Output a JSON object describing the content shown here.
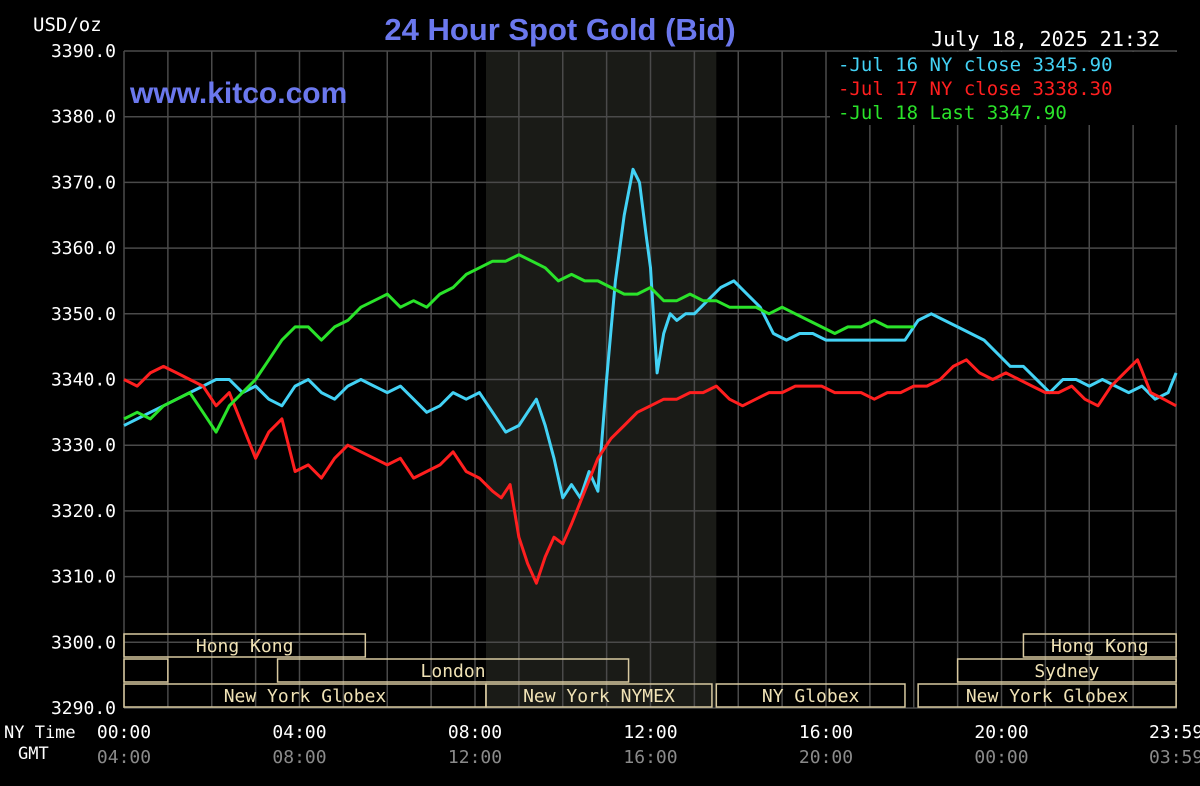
{
  "header": {
    "title": "24 Hour Spot Gold (Bid)",
    "unit": "USD/oz",
    "datetime": "July 18, 2025 21:32",
    "watermark": "www.kitco.com"
  },
  "colors": {
    "background": "#000000",
    "plot_background": "#000000",
    "nymex_shade": "#1a1b17",
    "grid": "#4a4a4a",
    "axis_text": "#ffffff",
    "sub_axis_text": "#8a8a8a",
    "title": "#6b78ee",
    "session_border": "#d8c9a0",
    "session_text": "#f0e2b5",
    "series_jul16": "#43d2f5",
    "series_jul17": "#ff1f1f",
    "series_jul18": "#2ae32a"
  },
  "chart_data": {
    "type": "line",
    "title": "24 Hour Spot Gold (Bid)",
    "ylabel": "USD/oz",
    "ylim": [
      3290,
      3390
    ],
    "y_ticks": [
      "3390.0",
      "3380.0",
      "3370.0",
      "3360.0",
      "3350.0",
      "3340.0",
      "3330.0",
      "3320.0",
      "3310.0",
      "3300.0",
      "3290.0"
    ],
    "x_axis": {
      "row1_label": "NY Time",
      "row2_label": "GMT",
      "ny_ticks": [
        "00:00",
        "04:00",
        "08:00",
        "12:00",
        "16:00",
        "20:00",
        "23:59"
      ],
      "gmt_ticks": [
        "04:00",
        "08:00",
        "12:00",
        "16:00",
        "20:00",
        "00:00",
        "03:59"
      ]
    },
    "grid": true,
    "legend_position": "top-right",
    "legend": [
      {
        "label": "Jul 16 NY close 3345.90",
        "color_key": "series_jul16"
      },
      {
        "label": "Jul 17 NY close 3338.30",
        "color_key": "series_jul17"
      },
      {
        "label": "Jul 18 Last 3347.90",
        "color_key": "series_jul18"
      }
    ],
    "shaded_region_hours": [
      8.25,
      13.5
    ],
    "series": [
      {
        "name": "Jul 16 NY close 3345.90",
        "color_key": "series_jul16",
        "x": [
          0,
          0.3,
          0.6,
          0.9,
          1.2,
          1.5,
          1.8,
          2.1,
          2.4,
          2.7,
          3.0,
          3.3,
          3.6,
          3.9,
          4.2,
          4.5,
          4.8,
          5.1,
          5.4,
          5.7,
          6.0,
          6.3,
          6.6,
          6.9,
          7.2,
          7.5,
          7.8,
          8.1,
          8.4,
          8.7,
          9.0,
          9.2,
          9.4,
          9.6,
          9.8,
          10.0,
          10.2,
          10.4,
          10.6,
          10.8,
          11.0,
          11.2,
          11.4,
          11.6,
          11.75,
          11.9,
          12.0,
          12.15,
          12.3,
          12.45,
          12.6,
          12.8,
          13.0,
          13.3,
          13.6,
          13.9,
          14.2,
          14.5,
          14.8,
          15.1,
          15.4,
          15.7,
          16.0,
          16.3,
          16.6,
          16.9,
          17.2,
          17.5,
          17.8,
          18.1,
          18.4,
          18.7,
          19.0,
          19.3,
          19.6,
          19.9,
          20.2,
          20.5,
          20.8,
          21.1,
          21.4,
          21.7,
          22.0,
          22.3,
          22.6,
          22.9,
          23.2,
          23.5,
          23.8,
          23.98
        ],
        "y": [
          3333,
          3334,
          3335,
          3336,
          3337,
          3338,
          3339,
          3340,
          3340,
          3338,
          3339,
          3337,
          3336,
          3339,
          3340,
          3338,
          3337,
          3339,
          3340,
          3339,
          3338,
          3339,
          3337,
          3335,
          3336,
          3338,
          3337,
          3338,
          3335,
          3332,
          3333,
          3335,
          3337,
          3333,
          3328,
          3322,
          3324,
          3322,
          3326,
          3323,
          3340,
          3355,
          3365,
          3372,
          3370,
          3362,
          3357,
          3341,
          3347,
          3350,
          3349,
          3350,
          3350,
          3352,
          3354,
          3355,
          3353,
          3351,
          3347,
          3346,
          3347,
          3347,
          3346,
          3346,
          3346,
          3346,
          3346,
          3346,
          3346,
          3349,
          3350,
          3349,
          3348,
          3347,
          3346,
          3344,
          3342,
          3342,
          3340,
          3338,
          3340,
          3340,
          3339,
          3340,
          3339,
          3338,
          3339,
          3337,
          3338,
          3341
        ]
      },
      {
        "name": "Jul 17 NY close 3338.30",
        "color_key": "series_jul17",
        "x": [
          0,
          0.3,
          0.6,
          0.9,
          1.2,
          1.5,
          1.8,
          2.1,
          2.4,
          2.7,
          3.0,
          3.3,
          3.6,
          3.9,
          4.2,
          4.5,
          4.8,
          5.1,
          5.4,
          5.7,
          6.0,
          6.3,
          6.6,
          6.9,
          7.2,
          7.5,
          7.8,
          8.1,
          8.4,
          8.6,
          8.8,
          9.0,
          9.2,
          9.4,
          9.6,
          9.8,
          10.0,
          10.2,
          10.5,
          10.8,
          11.1,
          11.4,
          11.7,
          12.0,
          12.3,
          12.6,
          12.9,
          13.2,
          13.5,
          13.8,
          14.1,
          14.4,
          14.7,
          15.0,
          15.3,
          15.6,
          15.9,
          16.2,
          16.5,
          16.8,
          17.1,
          17.4,
          17.7,
          18.0,
          18.3,
          18.6,
          18.9,
          19.2,
          19.5,
          19.8,
          20.1,
          20.4,
          20.7,
          21.0,
          21.3,
          21.6,
          21.9,
          22.2,
          22.5,
          22.8,
          23.1,
          23.4,
          23.7,
          23.98
        ],
        "y": [
          3340,
          3339,
          3341,
          3342,
          3341,
          3340,
          3339,
          3336,
          3338,
          3333,
          3328,
          3332,
          3334,
          3326,
          3327,
          3325,
          3328,
          3330,
          3329,
          3328,
          3327,
          3328,
          3325,
          3326,
          3327,
          3329,
          3326,
          3325,
          3323,
          3322,
          3324,
          3316,
          3312,
          3309,
          3313,
          3316,
          3315,
          3318,
          3323,
          3328,
          3331,
          3333,
          3335,
          3336,
          3337,
          3337,
          3338,
          3338,
          3339,
          3337,
          3336,
          3337,
          3338,
          3338,
          3339,
          3339,
          3339,
          3338,
          3338,
          3338,
          3337,
          3338,
          3338,
          3339,
          3339,
          3340,
          3342,
          3343,
          3341,
          3340,
          3341,
          3340,
          3339,
          3338,
          3338,
          3339,
          3337,
          3336,
          3339,
          3341,
          3343,
          3338,
          3337,
          3336
        ]
      },
      {
        "name": "Jul 18 Last 3347.90",
        "color_key": "series_jul18",
        "x": [
          0,
          0.3,
          0.6,
          0.9,
          1.2,
          1.5,
          1.8,
          2.1,
          2.4,
          2.7,
          3.0,
          3.3,
          3.6,
          3.9,
          4.2,
          4.5,
          4.8,
          5.1,
          5.4,
          5.7,
          6.0,
          6.3,
          6.6,
          6.9,
          7.2,
          7.5,
          7.8,
          8.1,
          8.4,
          8.7,
          9.0,
          9.3,
          9.6,
          9.9,
          10.2,
          10.5,
          10.8,
          11.1,
          11.4,
          11.7,
          12.0,
          12.3,
          12.6,
          12.9,
          13.2,
          13.5,
          13.8,
          14.1,
          14.4,
          14.7,
          15.0,
          15.3,
          15.6,
          15.9,
          16.2,
          16.5,
          16.8,
          17.1,
          17.4,
          17.7,
          18.0
        ],
        "y": [
          3334,
          3335,
          3334,
          3336,
          3337,
          3338,
          3335,
          3332,
          3336,
          3338,
          3340,
          3343,
          3346,
          3348,
          3348,
          3346,
          3348,
          3349,
          3351,
          3352,
          3353,
          3351,
          3352,
          3351,
          3353,
          3354,
          3356,
          3357,
          3358,
          3358,
          3359,
          3358,
          3357,
          3355,
          3356,
          3355,
          3355,
          3354,
          3353,
          3353,
          3354,
          3352,
          3352,
          3353,
          3352,
          3352,
          3351,
          3351,
          3351,
          3350,
          3351,
          3350,
          3349,
          3348,
          3347,
          3348,
          3348,
          3349,
          3348,
          3348,
          3348
        ]
      }
    ]
  },
  "sessions": [
    {
      "label": "Hong Kong",
      "row": 0,
      "start": 0,
      "end": 5.5
    },
    {
      "label": "",
      "row": 1,
      "start": 0,
      "end": 1.0
    },
    {
      "label": "London",
      "row": 1,
      "start": 3.5,
      "end": 11.5
    },
    {
      "label": "New York Globex",
      "row": 2,
      "start": 0,
      "end": 8.25
    },
    {
      "label": "New York NYMEX",
      "row": 2,
      "start": 8.25,
      "end": 13.4
    },
    {
      "label": "NY Globex",
      "row": 2,
      "start": 13.5,
      "end": 17.8
    },
    {
      "label": "Hong Kong",
      "row": 0,
      "start": 20.5,
      "end": 23.98
    },
    {
      "label": "Sydney",
      "row": 1,
      "start": 19.0,
      "end": 23.98
    },
    {
      "label": "New York Globex",
      "row": 2,
      "start": 18.1,
      "end": 23.98
    }
  ]
}
